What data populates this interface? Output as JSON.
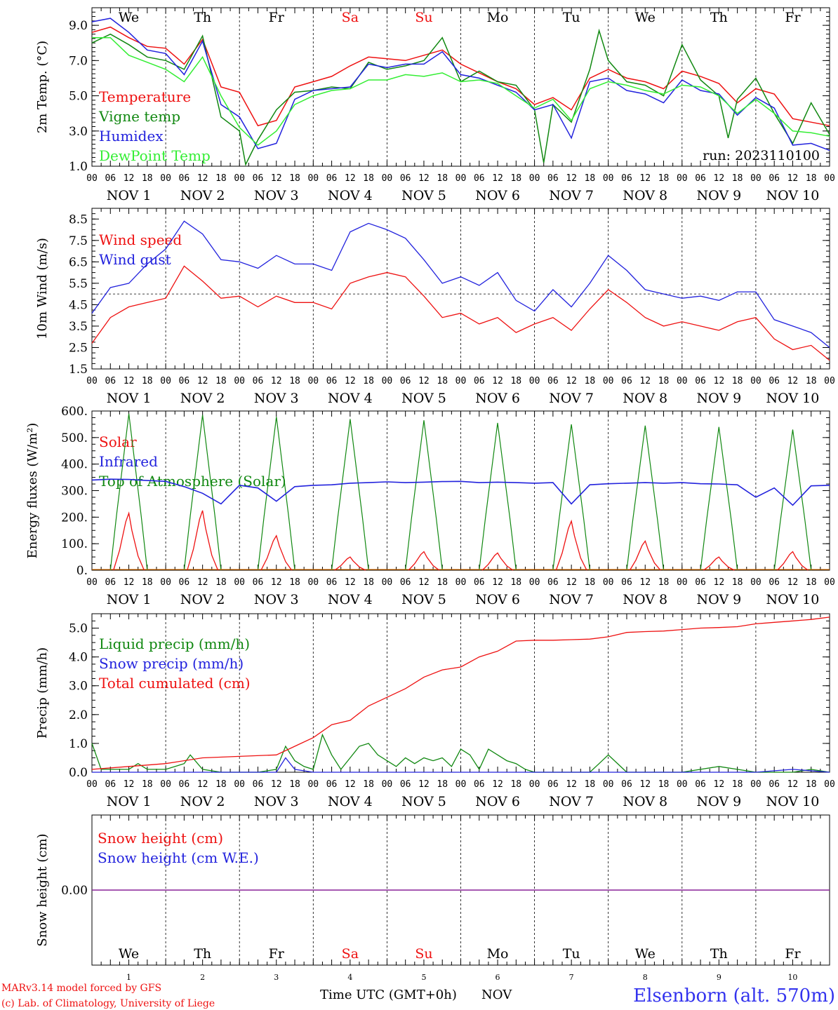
{
  "colors": {
    "red": "#ee1111",
    "dark_green": "#118811",
    "blue": "#2222dd",
    "light_green": "#33ee33",
    "purple": "#882299",
    "weekend": "#ee1111"
  },
  "weekdays": [
    "We",
    "Th",
    "Fr",
    "Sa",
    "Su",
    "Mo",
    "Tu",
    "We",
    "Th",
    "Fr"
  ],
  "weekend_days": [
    3,
    4
  ],
  "date_labels": [
    "NOV 1",
    "NOV 2",
    "NOV 3",
    "NOV 4",
    "NOV 5",
    "NOV 6",
    "NOV 7",
    "NOV 8",
    "NOV 9",
    "NOV 10"
  ],
  "hour_ticks": [
    "00",
    "06",
    "12",
    "18"
  ],
  "last_hour_tick": "00",
  "run_label": "run: 2023110100",
  "footer": {
    "model_line": "MARv3.14 model forced by GFS",
    "copyright_line": "(c) Lab. of Climatology, University of Liege",
    "xlabel": "Time UTC (GMT+0h)",
    "month": "NOV",
    "day_numbers": [
      "1",
      "2",
      "3",
      "4",
      "5",
      "6",
      "7",
      "8",
      "9",
      "10"
    ],
    "station": "Elsenborn (alt. 570m)"
  },
  "chart_data": [
    {
      "type": "line",
      "ylabel": "2m Temp. (°C)",
      "ylim": [
        1.0,
        10.0
      ],
      "yticks": [
        "1.0",
        "3.0",
        "5.0",
        "7.0",
        "9.0"
      ],
      "x_unit": "hours since 2023-11-01 00 UTC",
      "xlim": [
        0,
        240
      ],
      "legend": [
        "Temperature",
        "Vigne temp",
        "Humidex",
        "DewPoint Temp"
      ],
      "series": [
        {
          "name": "Temperature",
          "color": "#ee1111",
          "x": [
            0,
            6,
            12,
            18,
            24,
            30,
            36,
            42,
            48,
            54,
            60,
            66,
            72,
            78,
            84,
            90,
            96,
            102,
            108,
            114,
            120,
            126,
            132,
            138,
            144,
            150,
            156,
            162,
            168,
            174,
            180,
            186,
            192,
            198,
            204,
            210,
            216,
            222,
            228,
            234,
            240
          ],
          "y": [
            8.6,
            8.9,
            8.3,
            7.8,
            7.7,
            6.8,
            8.2,
            5.5,
            5.2,
            3.3,
            3.6,
            5.5,
            5.8,
            6.1,
            6.7,
            7.2,
            7.1,
            7.0,
            7.3,
            7.6,
            6.8,
            6.3,
            5.8,
            5.4,
            4.5,
            4.9,
            4.2,
            6.0,
            6.5,
            6.0,
            5.8,
            5.4,
            6.4,
            6.1,
            5.7,
            4.6,
            5.4,
            5.1,
            3.7,
            3.5,
            3.3
          ]
        },
        {
          "name": "Vigne temp",
          "color": "#118811",
          "x": [
            0,
            6,
            12,
            18,
            24,
            30,
            36,
            42,
            48,
            50,
            54,
            60,
            66,
            72,
            78,
            84,
            90,
            96,
            102,
            108,
            114,
            120,
            126,
            132,
            138,
            144,
            147,
            150,
            156,
            162,
            165,
            168,
            174,
            180,
            186,
            192,
            198,
            204,
            207,
            210,
            216,
            222,
            228,
            234,
            240
          ],
          "y": [
            8.0,
            8.5,
            7.9,
            7.2,
            7.0,
            6.5,
            8.4,
            3.8,
            3.0,
            1.1,
            2.5,
            4.2,
            5.2,
            5.3,
            5.5,
            5.4,
            6.9,
            6.5,
            6.7,
            7.0,
            8.3,
            5.8,
            6.4,
            5.8,
            5.6,
            4.2,
            1.2,
            4.5,
            3.5,
            6.5,
            8.7,
            7.0,
            5.8,
            5.6,
            5.0,
            7.9,
            5.9,
            5.0,
            2.6,
            4.8,
            6.0,
            4.0,
            2.3,
            4.6,
            2.8
          ]
        },
        {
          "name": "Humidex",
          "color": "#2222dd",
          "x": [
            0,
            6,
            12,
            18,
            24,
            30,
            36,
            42,
            48,
            54,
            60,
            66,
            72,
            78,
            84,
            90,
            96,
            102,
            108,
            114,
            120,
            126,
            132,
            138,
            144,
            150,
            156,
            162,
            168,
            174,
            180,
            186,
            192,
            198,
            204,
            210,
            216,
            222,
            228,
            234,
            240
          ],
          "y": [
            9.2,
            9.4,
            8.6,
            7.6,
            7.4,
            6.2,
            8.1,
            4.5,
            3.8,
            2.0,
            2.3,
            4.8,
            5.3,
            5.4,
            5.5,
            6.8,
            6.6,
            6.8,
            6.8,
            7.5,
            6.2,
            6.0,
            5.6,
            5.2,
            4.2,
            4.5,
            2.6,
            5.8,
            6.0,
            5.3,
            5.1,
            4.6,
            5.9,
            5.3,
            5.1,
            3.9,
            4.9,
            4.3,
            2.2,
            2.3,
            1.9
          ]
        },
        {
          "name": "DewPoint Temp",
          "color": "#33ee33",
          "x": [
            0,
            6,
            12,
            18,
            24,
            30,
            36,
            42,
            48,
            54,
            60,
            66,
            72,
            78,
            84,
            90,
            96,
            102,
            108,
            114,
            120,
            126,
            132,
            138,
            144,
            150,
            156,
            162,
            168,
            174,
            180,
            186,
            192,
            198,
            204,
            210,
            216,
            222,
            228,
            234,
            240
          ],
          "y": [
            8.3,
            8.3,
            7.3,
            6.9,
            6.5,
            5.8,
            7.2,
            5.0,
            3.2,
            2.2,
            3.0,
            4.5,
            5.0,
            5.3,
            5.4,
            5.9,
            5.9,
            6.2,
            6.1,
            6.3,
            5.8,
            5.9,
            5.7,
            5.0,
            4.3,
            4.8,
            3.6,
            5.4,
            5.8,
            5.6,
            5.3,
            5.1,
            5.6,
            5.5,
            5.0,
            4.0,
            4.8,
            4.0,
            3.0,
            2.9,
            2.7
          ]
        }
      ]
    },
    {
      "type": "line",
      "ylabel": "10m Wind (m/s)",
      "ylim": [
        1.5,
        9.0
      ],
      "yticks": [
        "1.5",
        "2.5",
        "3.5",
        "4.5",
        "5.5",
        "6.5",
        "7.5",
        "8.5"
      ],
      "reference_line": 5.0,
      "x_unit": "hours since 2023-11-01 00 UTC",
      "xlim": [
        0,
        240
      ],
      "legend": [
        "Wind speed",
        "Wind gust"
      ],
      "series": [
        {
          "name": "Wind speed",
          "color": "#ee1111",
          "x": [
            0,
            6,
            12,
            18,
            24,
            30,
            36,
            42,
            48,
            54,
            60,
            66,
            72,
            78,
            84,
            90,
            96,
            102,
            108,
            114,
            120,
            126,
            132,
            138,
            144,
            150,
            156,
            162,
            168,
            174,
            180,
            186,
            192,
            198,
            204,
            210,
            216,
            222,
            228,
            234,
            240
          ],
          "y": [
            2.7,
            3.9,
            4.4,
            4.6,
            4.8,
            6.3,
            5.6,
            4.8,
            4.9,
            4.4,
            4.9,
            4.6,
            4.6,
            4.3,
            5.5,
            5.8,
            6.0,
            5.8,
            4.9,
            3.9,
            4.1,
            3.6,
            3.9,
            3.2,
            3.6,
            3.9,
            3.3,
            4.3,
            5.2,
            4.6,
            3.9,
            3.5,
            3.7,
            3.5,
            3.3,
            3.7,
            3.9,
            2.9,
            2.4,
            2.6,
            1.9
          ]
        },
        {
          "name": "Wind gust",
          "color": "#2222dd",
          "x": [
            0,
            6,
            12,
            18,
            24,
            30,
            36,
            42,
            48,
            54,
            60,
            66,
            72,
            78,
            84,
            90,
            96,
            102,
            108,
            114,
            120,
            126,
            132,
            138,
            144,
            150,
            156,
            162,
            168,
            174,
            180,
            186,
            192,
            198,
            204,
            210,
            216,
            222,
            228,
            234,
            240
          ],
          "y": [
            4.1,
            5.3,
            5.5,
            6.4,
            7.1,
            8.4,
            7.8,
            6.6,
            6.5,
            6.2,
            6.8,
            6.4,
            6.4,
            6.1,
            7.9,
            8.3,
            8.0,
            7.6,
            6.6,
            5.5,
            5.8,
            5.4,
            6.0,
            4.7,
            4.2,
            5.2,
            4.4,
            5.5,
            6.8,
            6.1,
            5.2,
            5.0,
            4.8,
            4.9,
            4.7,
            5.1,
            5.1,
            3.8,
            3.5,
            3.2,
            2.5
          ]
        }
      ]
    },
    {
      "type": "line",
      "ylabel": "Energy fluxes (W/m²)",
      "ylim": [
        0,
        600
      ],
      "yticks": [
        "0.",
        "100.",
        "200.",
        "300.",
        "400.",
        "500.",
        "600."
      ],
      "x_unit": "hours since 2023-11-01 00 UTC",
      "xlim": [
        0,
        240
      ],
      "legend": [
        "Solar",
        "Infrared",
        "Top of Atmosphere (Solar)"
      ],
      "series": [
        {
          "name": "Solar",
          "color": "#ee1111",
          "daily_peak": [
            215,
            225,
            130,
            50,
            70,
            65,
            185,
            110,
            50,
            70
          ]
        },
        {
          "name": "Infrared",
          "color": "#2222dd",
          "x": [
            0,
            6,
            12,
            18,
            24,
            30,
            36,
            42,
            48,
            54,
            60,
            66,
            72,
            78,
            84,
            90,
            96,
            102,
            108,
            114,
            120,
            126,
            132,
            138,
            144,
            150,
            156,
            162,
            168,
            174,
            180,
            186,
            192,
            198,
            204,
            210,
            216,
            222,
            228,
            234,
            240
          ],
          "y": [
            340,
            343,
            342,
            338,
            335,
            315,
            290,
            250,
            320,
            310,
            260,
            315,
            320,
            322,
            328,
            330,
            333,
            330,
            332,
            334,
            335,
            330,
            332,
            330,
            328,
            330,
            250,
            322,
            326,
            328,
            330,
            328,
            330,
            326,
            325,
            322,
            275,
            310,
            245,
            318,
            320
          ]
        },
        {
          "name": "Top of Atmosphere (Solar)",
          "color": "#118811",
          "daily_peak": [
            590,
            585,
            578,
            570,
            565,
            555,
            550,
            545,
            540,
            530
          ]
        }
      ]
    },
    {
      "type": "line",
      "ylabel": "Precip (mm/h)",
      "ylim": [
        0,
        5.5
      ],
      "yticks": [
        "0.0",
        "1.0",
        "2.0",
        "3.0",
        "4.0",
        "5.0"
      ],
      "x_unit": "hours since 2023-11-01 00 UTC",
      "xlim": [
        0,
        240
      ],
      "legend": [
        "Liquid precip (mm/h)",
        "Snow precip (mm/h)",
        "Total cumulated (cm)"
      ],
      "series": [
        {
          "name": "Liquid precip (mm/h)",
          "color": "#118811",
          "x": [
            0,
            3,
            6,
            12,
            15,
            18,
            24,
            30,
            32,
            36,
            42,
            48,
            54,
            60,
            63,
            66,
            69,
            72,
            75,
            78,
            81,
            84,
            87,
            90,
            93,
            96,
            99,
            102,
            105,
            108,
            111,
            114,
            117,
            120,
            123,
            126,
            129,
            132,
            135,
            138,
            141,
            144,
            150,
            156,
            162,
            165,
            168,
            174,
            180,
            186,
            192,
            198,
            204,
            210,
            216,
            222,
            228,
            234,
            240
          ],
          "y": [
            1.0,
            0.1,
            0.1,
            0.1,
            0.3,
            0.1,
            0.1,
            0.3,
            0.6,
            0.1,
            0.0,
            0.0,
            0.0,
            0.1,
            0.9,
            0.4,
            0.2,
            0.1,
            1.3,
            0.6,
            0.1,
            0.5,
            0.9,
            1.0,
            0.6,
            0.4,
            0.2,
            0.5,
            0.3,
            0.5,
            0.4,
            0.5,
            0.2,
            0.8,
            0.6,
            0.1,
            0.8,
            0.6,
            0.4,
            0.3,
            0.1,
            0.0,
            0.0,
            0.0,
            0.0,
            0.3,
            0.6,
            0.0,
            0.0,
            0.0,
            0.0,
            0.1,
            0.2,
            0.1,
            0.0,
            0.0,
            0.0,
            0.1,
            0.0
          ]
        },
        {
          "name": "Snow precip (mm/h)",
          "color": "#2222dd",
          "x": [
            0,
            6,
            12,
            18,
            24,
            48,
            60,
            63,
            66,
            72,
            78,
            84,
            96,
            120,
            144,
            168,
            192,
            216,
            228,
            240
          ],
          "y": [
            0.0,
            0.0,
            0.0,
            0.0,
            0.0,
            0.0,
            0.0,
            0.5,
            0.1,
            0.0,
            0.0,
            0.0,
            0.0,
            0.0,
            0.0,
            0.0,
            0.0,
            0.0,
            0.1,
            0.0
          ]
        },
        {
          "name": "Total cumulated (cm)",
          "color": "#ee1111",
          "x": [
            0,
            12,
            24,
            36,
            48,
            60,
            66,
            72,
            78,
            84,
            90,
            96,
            102,
            108,
            114,
            120,
            126,
            132,
            138,
            144,
            150,
            156,
            162,
            168,
            174,
            180,
            186,
            192,
            198,
            204,
            210,
            216,
            222,
            228,
            234,
            240
          ],
          "y": [
            0.1,
            0.2,
            0.3,
            0.5,
            0.55,
            0.6,
            0.9,
            1.2,
            1.65,
            1.8,
            2.3,
            2.6,
            2.9,
            3.3,
            3.55,
            3.65,
            4.0,
            4.2,
            4.55,
            4.58,
            4.58,
            4.6,
            4.62,
            4.7,
            4.85,
            4.88,
            4.9,
            4.95,
            5.0,
            5.02,
            5.05,
            5.15,
            5.2,
            5.25,
            5.3,
            5.38
          ]
        }
      ]
    },
    {
      "type": "line",
      "ylabel": "Snow height (cm)",
      "yticks": [
        "0.00"
      ],
      "x_unit": "hours since 2023-11-01 00 UTC",
      "xlim": [
        0,
        240
      ],
      "legend": [
        "Snow height (cm)",
        "Snow height (cm W.E.)"
      ],
      "series": [
        {
          "name": "Snow height (cm)",
          "color": "#ee1111",
          "x": [
            0,
            240
          ],
          "y": [
            0.0,
            0.0
          ]
        },
        {
          "name": "Snow height (cm W.E.)",
          "color": "#2222dd",
          "x": [
            0,
            240
          ],
          "y": [
            0.0,
            0.0
          ]
        }
      ]
    }
  ]
}
